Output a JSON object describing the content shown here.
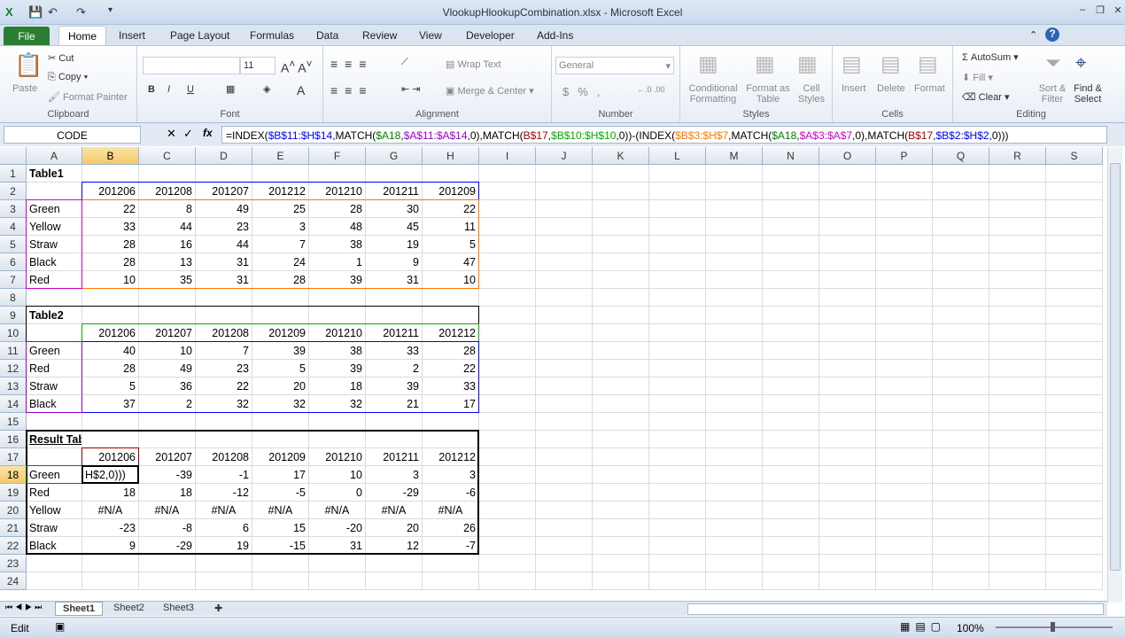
{
  "window": {
    "title": "VlookupHlookupCombination.xlsx - Microsoft Excel"
  },
  "tabs": [
    "File",
    "Home",
    "Insert",
    "Page Layout",
    "Formulas",
    "Data",
    "Review",
    "View",
    "Developer",
    "Add-Ins"
  ],
  "ribbon": {
    "clipboard": {
      "label": "Clipboard",
      "paste": "Paste",
      "cut": "Cut",
      "copy": "Copy",
      "format_painter": "Format Painter"
    },
    "font": {
      "label": "Font",
      "font_name": "",
      "font_size": "11"
    },
    "alignment": {
      "label": "Alignment",
      "wrap_text": "Wrap Text",
      "merge_center": "Merge & Center"
    },
    "number": {
      "label": "Number",
      "format": "General"
    },
    "styles": {
      "label": "Styles",
      "conditional": "Conditional Formatting",
      "format_table": "Format as Table",
      "cell_styles": "Cell Styles"
    },
    "cells": {
      "label": "Cells",
      "insert": "Insert",
      "delete": "Delete",
      "format": "Format"
    },
    "editing": {
      "label": "Editing",
      "autosum": "AutoSum",
      "fill": "Fill",
      "clear": "Clear",
      "sort_filter": "Sort & Filter",
      "find_select": "Find & Select"
    }
  },
  "formula_bar": {
    "name_box": "CODE",
    "fx": "fx",
    "segments": [
      {
        "t": "=INDEX(",
        "c": "#000000"
      },
      {
        "t": "$B$11:$H$14",
        "c": "#0000ff"
      },
      {
        "t": ",MATCH(",
        "c": "#000000"
      },
      {
        "t": "$A18",
        "c": "#008000"
      },
      {
        "t": ",",
        "c": "#000000"
      },
      {
        "t": "$A$11:$A$14",
        "c": "#9900cc"
      },
      {
        "t": ",0),MATCH(",
        "c": "#000000"
      },
      {
        "t": "B$17",
        "c": "#990000"
      },
      {
        "t": ",",
        "c": "#000000"
      },
      {
        "t": "$B$10:$H$10",
        "c": "#00aa00"
      },
      {
        "t": ",0))-(INDEX(",
        "c": "#000000"
      },
      {
        "t": "$B$3:$H$7",
        "c": "#ff7700"
      },
      {
        "t": ",MATCH(",
        "c": "#000000"
      },
      {
        "t": "$A18",
        "c": "#008000"
      },
      {
        "t": ",",
        "c": "#000000"
      },
      {
        "t": "$A$3:$A$7",
        "c": "#cc00cc"
      },
      {
        "t": ",0),MATCH(",
        "c": "#000000"
      },
      {
        "t": "B$17",
        "c": "#990000"
      },
      {
        "t": ",",
        "c": "#000000"
      },
      {
        "t": "$B$2:$H$2",
        "c": "#0000ff"
      },
      {
        "t": ",0)))",
        "c": "#000000"
      }
    ]
  },
  "columns": [
    "A",
    "B",
    "C",
    "D",
    "E",
    "F",
    "G",
    "H",
    "I",
    "J",
    "K",
    "L",
    "M",
    "N",
    "O",
    "P",
    "Q",
    "R",
    "S"
  ],
  "active_cell": "B18",
  "rows": [
    [
      "Table1"
    ],
    [
      "",
      "201206",
      "201208",
      "201207",
      "201212",
      "201210",
      "201211",
      "201209"
    ],
    [
      "Green",
      "22",
      "8",
      "49",
      "25",
      "28",
      "30",
      "22"
    ],
    [
      "Yellow",
      "33",
      "44",
      "23",
      "3",
      "48",
      "45",
      "11"
    ],
    [
      "Straw",
      "28",
      "16",
      "44",
      "7",
      "38",
      "19",
      "5"
    ],
    [
      "Black",
      "28",
      "13",
      "31",
      "24",
      "1",
      "9",
      "47"
    ],
    [
      "Red",
      "10",
      "35",
      "31",
      "28",
      "39",
      "31",
      "10"
    ],
    [],
    [
      "Table2"
    ],
    [
      "",
      "201206",
      "201207",
      "201208",
      "201209",
      "201210",
      "201211",
      "201212"
    ],
    [
      "Green",
      "40",
      "10",
      "7",
      "39",
      "38",
      "33",
      "28"
    ],
    [
      "Red",
      "28",
      "49",
      "23",
      "5",
      "39",
      "2",
      "22"
    ],
    [
      "Straw",
      "5",
      "36",
      "22",
      "20",
      "18",
      "39",
      "33"
    ],
    [
      "Black",
      "37",
      "2",
      "32",
      "32",
      "32",
      "21",
      "17"
    ],
    [],
    [
      "Result Table"
    ],
    [
      "",
      "201206",
      "201207",
      "201208",
      "201209",
      "201210",
      "201211",
      "201212"
    ],
    [
      "Green",
      "H$2,0)))",
      "-39",
      "-1",
      "17",
      "10",
      "3",
      "3"
    ],
    [
      "Red",
      "18",
      "18",
      "-12",
      "-5",
      "0",
      "-29",
      "-6"
    ],
    [
      "Yellow",
      "#N/A",
      "#N/A",
      "#N/A",
      "#N/A",
      "#N/A",
      "#N/A",
      "#N/A"
    ],
    [
      "Straw",
      "-23",
      "-8",
      "6",
      "15",
      "-20",
      "20",
      "26"
    ],
    [
      "Black",
      "9",
      "-29",
      "19",
      "-15",
      "31",
      "12",
      "-7"
    ],
    [],
    []
  ],
  "sheets": [
    "Sheet1",
    "Sheet2",
    "Sheet3"
  ],
  "active_sheet": "Sheet1",
  "status": {
    "mode": "Edit",
    "zoom": "100%"
  }
}
